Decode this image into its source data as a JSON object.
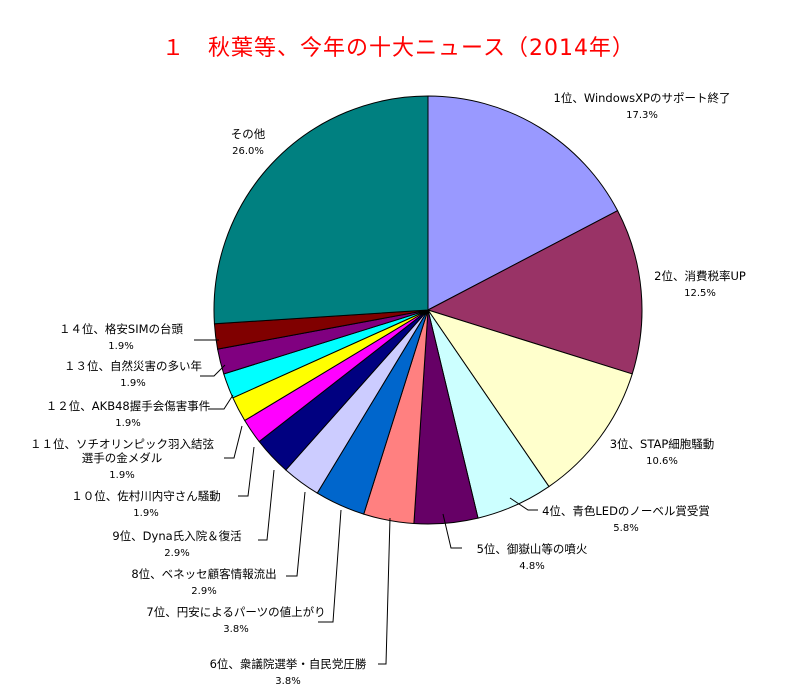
{
  "chart_data": {
    "type": "pie",
    "title": "１　秋葉等、今年の十大ニュース（2014年）",
    "slices": [
      {
        "label": "1位、WindowsXPのサポート終了",
        "value": 17.3,
        "pct_label": "17.3%",
        "color": "#9999ff"
      },
      {
        "label": "2位、消費税率UP",
        "value": 12.5,
        "pct_label": "12.5%",
        "color": "#993366"
      },
      {
        "label": "3位、STAP細胞騒動",
        "value": 10.6,
        "pct_label": "10.6%",
        "color": "#ffffcc"
      },
      {
        "label": "4位、青色LEDのノーベル賞受賞",
        "value": 5.8,
        "pct_label": "5.8%",
        "color": "#ccffff"
      },
      {
        "label": "5位、御嶽山等の噴火",
        "value": 4.8,
        "pct_label": "4.8%",
        "color": "#660066"
      },
      {
        "label": "6位、衆議院選挙・自民党圧勝",
        "value": 3.8,
        "pct_label": "3.8%",
        "color": "#ff8080"
      },
      {
        "label": "7位、円安によるパーツの値上がり",
        "value": 3.8,
        "pct_label": "3.8%",
        "color": "#0066cc"
      },
      {
        "label": "8位、ベネッセ顧客情報流出",
        "value": 2.9,
        "pct_label": "2.9%",
        "color": "#ccccff"
      },
      {
        "label": "9位、Dyna氏入院＆復活",
        "value": 2.9,
        "pct_label": "2.9%",
        "color": "#000080"
      },
      {
        "label": "１０位、佐村川内守さん騒動",
        "value": 1.9,
        "pct_label": "1.9%",
        "color": "#ff00ff"
      },
      {
        "label": "１１位、ソチオリンピック羽入結弦選手の金メダル",
        "value": 1.9,
        "pct_label": "1.9%",
        "color": "#ffff00"
      },
      {
        "label": "１２位、AKB48握手会傷害事件",
        "value": 1.9,
        "pct_label": "1.9%",
        "color": "#00ffff"
      },
      {
        "label": "１３位、自然災害の多い年",
        "value": 1.9,
        "pct_label": "1.9%",
        "color": "#800080"
      },
      {
        "label": "１４位、格安SIMの台頭",
        "value": 1.9,
        "pct_label": "1.9%",
        "color": "#800000"
      },
      {
        "label": "その他",
        "value": 26.0,
        "pct_label": "26.0%",
        "color": "#008080"
      }
    ]
  }
}
